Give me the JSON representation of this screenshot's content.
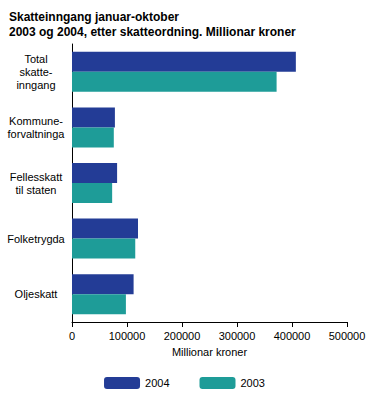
{
  "chart_data": {
    "type": "bar",
    "orientation": "horizontal",
    "title": "Skatteinngang januar-oktober\n2003 og 2004, etter skatteordning. Millionar kroner",
    "x_label": "Millionar kroner",
    "categories": [
      "Total\nskatte-\ninngang",
      "Kommune-\nforvaltninga",
      "Fellesskatt\ntil staten",
      "Folketrygda",
      "Oljeskatt"
    ],
    "series": [
      {
        "name": "2004",
        "color": "#233c96",
        "values": [
          407000,
          78000,
          82000,
          120000,
          112000
        ]
      },
      {
        "name": "2003",
        "color": "#1e9c98",
        "values": [
          372000,
          76000,
          73000,
          115000,
          98000
        ]
      }
    ],
    "xlim": [
      0,
      500000
    ],
    "xticks": [
      0,
      100000,
      200000,
      300000,
      400000,
      500000
    ],
    "grid": false,
    "legend": "bottom"
  }
}
